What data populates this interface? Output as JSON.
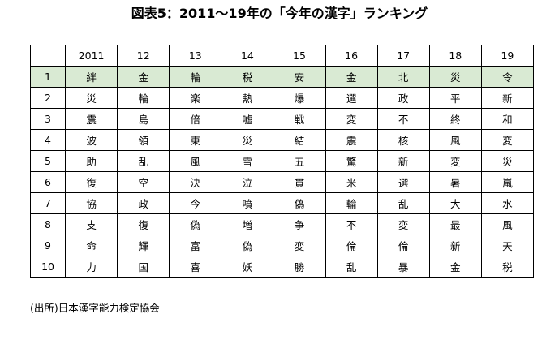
{
  "title": "図表5：2011～19年の「今年の漢字」ランキング",
  "table": {
    "headers": [
      "",
      "2011",
      "12",
      "13",
      "14",
      "15",
      "16",
      "17",
      "18",
      "19"
    ],
    "highlight_color": "#d9ead3",
    "rows": [
      [
        "1",
        "絆",
        "金",
        "輪",
        "税",
        "安",
        "金",
        "北",
        "災",
        "令"
      ],
      [
        "2",
        "災",
        "輪",
        "楽",
        "熱",
        "爆",
        "選",
        "政",
        "平",
        "新"
      ],
      [
        "3",
        "震",
        "島",
        "倍",
        "嘘",
        "戦",
        "変",
        "不",
        "終",
        "和"
      ],
      [
        "4",
        "波",
        "領",
        "東",
        "災",
        "結",
        "震",
        "核",
        "風",
        "変"
      ],
      [
        "5",
        "助",
        "乱",
        "風",
        "雪",
        "五",
        "驚",
        "新",
        "変",
        "災"
      ],
      [
        "6",
        "復",
        "空",
        "決",
        "泣",
        "貫",
        "米",
        "選",
        "暑",
        "嵐"
      ],
      [
        "7",
        "協",
        "政",
        "今",
        "噴",
        "偽",
        "輪",
        "乱",
        "大",
        "水"
      ],
      [
        "8",
        "支",
        "復",
        "偽",
        "増",
        "争",
        "不",
        "変",
        "最",
        "風"
      ],
      [
        "9",
        "命",
        "輝",
        "富",
        "偽",
        "変",
        "倫",
        "倫",
        "新",
        "天"
      ],
      [
        "10",
        "力",
        "国",
        "喜",
        "妖",
        "勝",
        "乱",
        "暴",
        "金",
        "税"
      ]
    ]
  },
  "source": "(出所)日本漢字能力検定協会"
}
